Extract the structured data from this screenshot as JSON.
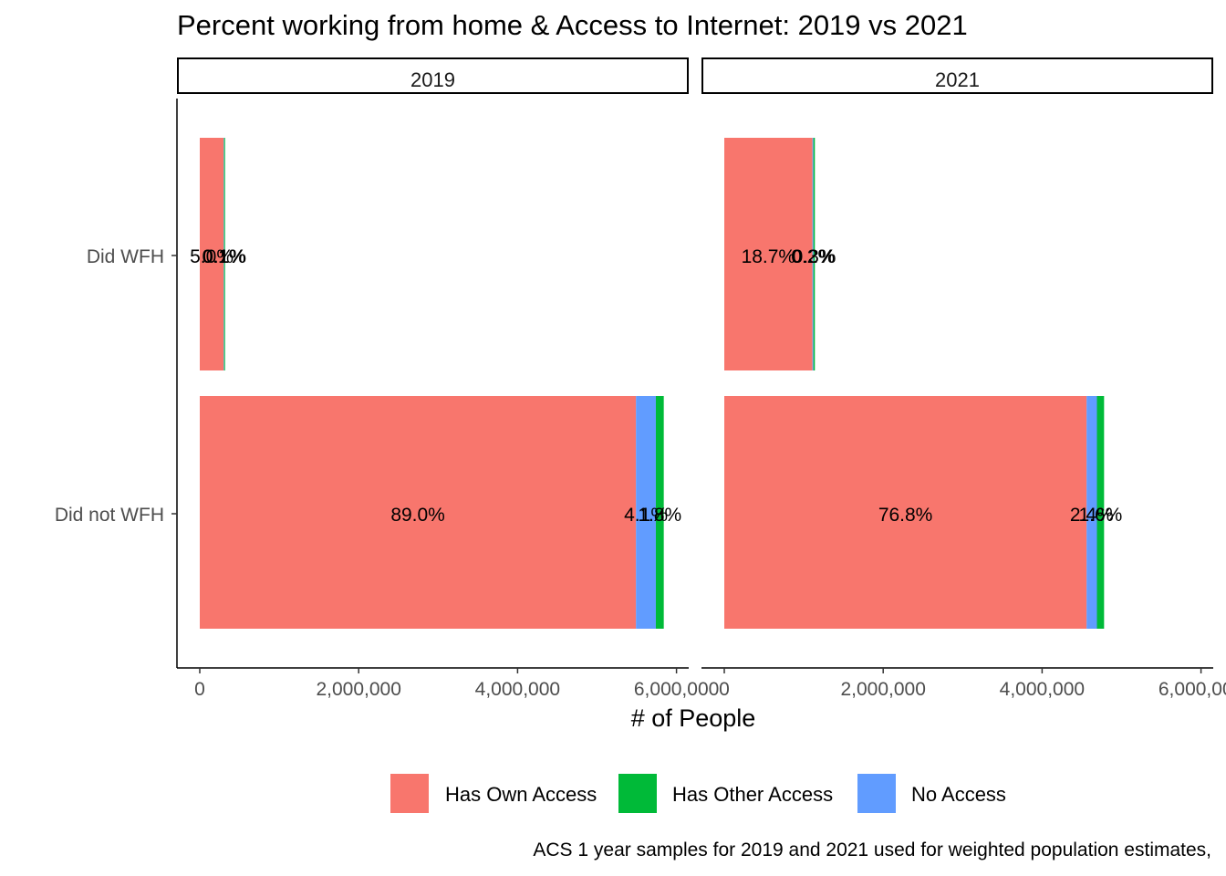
{
  "chart_data": {
    "type": "bar",
    "orientation": "horizontal",
    "stacked": true,
    "title": "Percent working from home & Access to Internet: 2019 vs 2021",
    "xlabel": "# of People",
    "ylabel": "",
    "caption": "ACS 1 year samples for 2019 and 2021 used for weighted population estimates,",
    "xlim": [
      0,
      6000000
    ],
    "x_ticks": [
      0,
      2000000,
      4000000,
      6000000
    ],
    "x_tick_labels": [
      "0",
      "2,000,000",
      "4,000,000",
      "6,000,000"
    ],
    "categories": [
      "Did WFH",
      "Did not WFH"
    ],
    "legend_position": "bottom",
    "legend": [
      {
        "name": "Has Own Access",
        "color": "#F8766D"
      },
      {
        "name": "Has Other Access",
        "color": "#00BA38"
      },
      {
        "name": "No Access",
        "color": "#619CFF"
      }
    ],
    "panels": [
      {
        "label": "2019",
        "bars": [
          {
            "category": "Did WFH",
            "segments": [
              {
                "series": "Has Own Access",
                "value": 300000,
                "label": "5.0%"
              },
              {
                "series": "No Access",
                "value": 6000,
                "label": "0.1%"
              },
              {
                "series": "Has Other Access",
                "value": 12000,
                "label": "0.1%"
              }
            ]
          },
          {
            "category": "Did not WFH",
            "segments": [
              {
                "series": "Has Own Access",
                "value": 5490000,
                "label": "89.0%"
              },
              {
                "series": "No Access",
                "value": 250000,
                "label": "4.1%"
              },
              {
                "series": "Has Other Access",
                "value": 100000,
                "label": "1.8%"
              }
            ]
          }
        ]
      },
      {
        "label": "2021",
        "bars": [
          {
            "category": "Did WFH",
            "segments": [
              {
                "series": "Has Own Access",
                "value": 1110000,
                "label": "18.7%"
              },
              {
                "series": "No Access",
                "value": 12000,
                "label": "0.2%"
              },
              {
                "series": "Has Other Access",
                "value": 18000,
                "label": "0.3%"
              }
            ]
          },
          {
            "category": "Did not WFH",
            "segments": [
              {
                "series": "Has Own Access",
                "value": 4560000,
                "label": "76.8%"
              },
              {
                "series": "No Access",
                "value": 130000,
                "label": "2.4%"
              },
              {
                "series": "Has Other Access",
                "value": 90000,
                "label": "1.6%"
              }
            ]
          }
        ]
      }
    ]
  }
}
